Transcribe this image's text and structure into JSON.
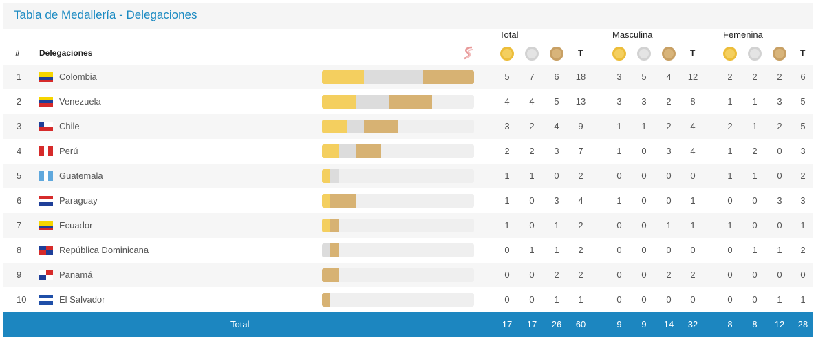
{
  "title": "Tabla de Medallería - Delegaciones",
  "groups": [
    {
      "key": "total",
      "label": "Total"
    },
    {
      "key": "masc",
      "label": "Masculina"
    },
    {
      "key": "fem",
      "label": "Femenina"
    }
  ],
  "columns": {
    "rank": "#",
    "delegation": "Delegaciones",
    "t": "T"
  },
  "colors": {
    "gold": "#f4cf5f",
    "silver": "#dcdcdc",
    "bronze": "#d7b273",
    "accent": "#1c86c0"
  },
  "bar_scale_max": 18,
  "rows": [
    {
      "rank": "1",
      "name": "Colombia",
      "flag": "colombia",
      "total": [
        "5",
        "7",
        "6",
        "18"
      ],
      "masc": [
        "3",
        "5",
        "4",
        "12"
      ],
      "fem": [
        "2",
        "2",
        "2",
        "6"
      ]
    },
    {
      "rank": "2",
      "name": "Venezuela",
      "flag": "venezuela",
      "total": [
        "4",
        "4",
        "5",
        "13"
      ],
      "masc": [
        "3",
        "3",
        "2",
        "8"
      ],
      "fem": [
        "1",
        "1",
        "3",
        "5"
      ]
    },
    {
      "rank": "3",
      "name": "Chile",
      "flag": "chile",
      "total": [
        "3",
        "2",
        "4",
        "9"
      ],
      "masc": [
        "1",
        "1",
        "2",
        "4"
      ],
      "fem": [
        "2",
        "1",
        "2",
        "5"
      ]
    },
    {
      "rank": "4",
      "name": "Perú",
      "flag": "peru",
      "total": [
        "2",
        "2",
        "3",
        "7"
      ],
      "masc": [
        "1",
        "0",
        "3",
        "4"
      ],
      "fem": [
        "1",
        "2",
        "0",
        "3"
      ]
    },
    {
      "rank": "5",
      "name": "Guatemala",
      "flag": "guatemala",
      "total": [
        "1",
        "1",
        "0",
        "2"
      ],
      "masc": [
        "0",
        "0",
        "0",
        "0"
      ],
      "fem": [
        "1",
        "1",
        "0",
        "2"
      ]
    },
    {
      "rank": "6",
      "name": "Paraguay",
      "flag": "paraguay",
      "total": [
        "1",
        "0",
        "3",
        "4"
      ],
      "masc": [
        "1",
        "0",
        "0",
        "1"
      ],
      "fem": [
        "0",
        "0",
        "3",
        "3"
      ]
    },
    {
      "rank": "7",
      "name": "Ecuador",
      "flag": "ecuador",
      "total": [
        "1",
        "0",
        "1",
        "2"
      ],
      "masc": [
        "0",
        "0",
        "1",
        "1"
      ],
      "fem": [
        "1",
        "0",
        "0",
        "1"
      ]
    },
    {
      "rank": "8",
      "name": "República Dominicana",
      "flag": "dominicana",
      "total": [
        "0",
        "1",
        "1",
        "2"
      ],
      "masc": [
        "0",
        "0",
        "0",
        "0"
      ],
      "fem": [
        "0",
        "1",
        "1",
        "2"
      ]
    },
    {
      "rank": "9",
      "name": "Panamá",
      "flag": "panama",
      "total": [
        "0",
        "0",
        "2",
        "2"
      ],
      "masc": [
        "0",
        "0",
        "2",
        "2"
      ],
      "fem": [
        "0",
        "0",
        "0",
        "0"
      ]
    },
    {
      "rank": "10",
      "name": "El Salvador",
      "flag": "elsalvador",
      "total": [
        "0",
        "0",
        "1",
        "1"
      ],
      "masc": [
        "0",
        "0",
        "0",
        "0"
      ],
      "fem": [
        "0",
        "0",
        "1",
        "1"
      ]
    }
  ],
  "footer": {
    "label": "Total",
    "total": [
      "17",
      "17",
      "26",
      "60"
    ],
    "masc": [
      "9",
      "9",
      "14",
      "32"
    ],
    "fem": [
      "8",
      "8",
      "12",
      "28"
    ]
  }
}
